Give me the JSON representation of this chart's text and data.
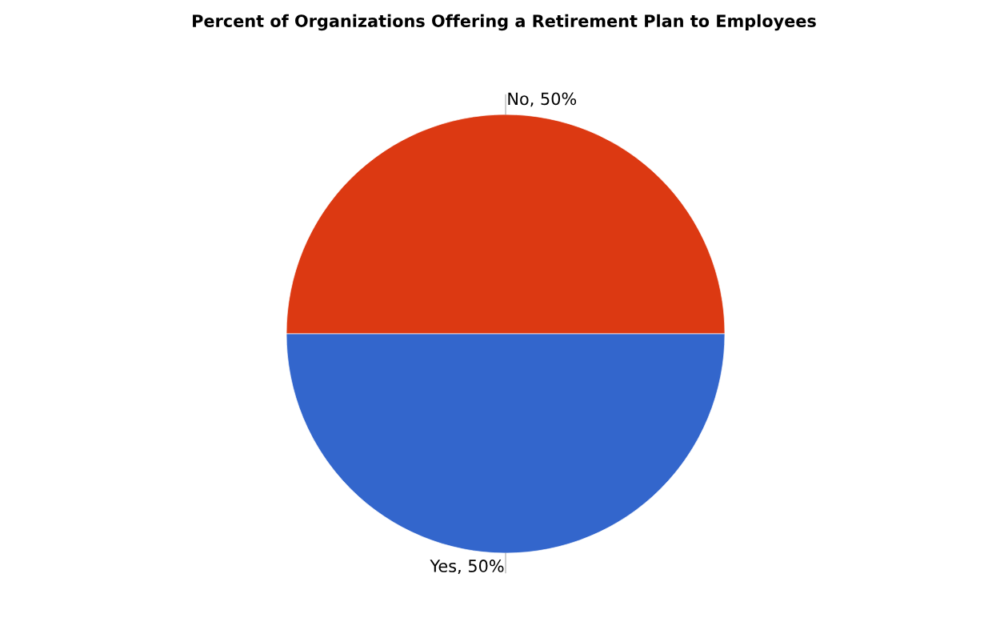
{
  "chart_data": {
    "type": "pie",
    "title": "Percent of Organizations Offering a Retirement Plan to Employees",
    "categories": [
      "No",
      "Yes"
    ],
    "values": [
      50,
      50
    ],
    "colors": [
      "#dc3912",
      "#3366cc"
    ],
    "value_labels": [
      ", 50%",
      ", 50%"
    ]
  }
}
